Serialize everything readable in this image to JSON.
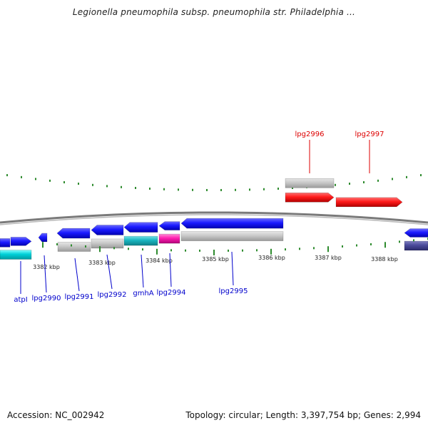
{
  "header": {
    "title": "Legionella pneumophila subsp. pneumophila str. Philadelphia ..."
  },
  "footer": {
    "accession": "Accession: NC_002942",
    "summary": "Topology: circular; Length: 3,397,754 bp; Genes: 2,994"
  },
  "colors": {
    "forward": "#1a1aff",
    "forward_dark": "#0000b0",
    "selected": "#ff1a1a",
    "gene_label_forward": "#0000cc",
    "gene_label_selected": "#dd0000",
    "backbone": "#8a8a8a",
    "tick": "#2e8b2e",
    "gray_track": "#c8c8c8",
    "cyan": "#00d0d8",
    "teal": "#19b5bf",
    "magenta": "#ff1fb0",
    "navy": "#4a4a9a"
  },
  "scale": {
    "ticks": [
      {
        "label": "3382 kbp"
      },
      {
        "label": "3383 kbp"
      },
      {
        "label": "3384 kbp"
      },
      {
        "label": "3385 kbp"
      },
      {
        "label": "3386 kbp"
      },
      {
        "label": "3387 kbp"
      },
      {
        "label": "3388 kbp"
      }
    ]
  },
  "genes": {
    "lower": [
      {
        "name": "atpI"
      },
      {
        "name": "lpg2990"
      },
      {
        "name": "lpg2991"
      },
      {
        "name": "lpg2992"
      },
      {
        "name": "gmhA"
      },
      {
        "name": "lpg2994"
      },
      {
        "name": "lpg2995"
      }
    ],
    "upper": [
      {
        "name": "lpg2996"
      },
      {
        "name": "lpg2997"
      }
    ]
  }
}
